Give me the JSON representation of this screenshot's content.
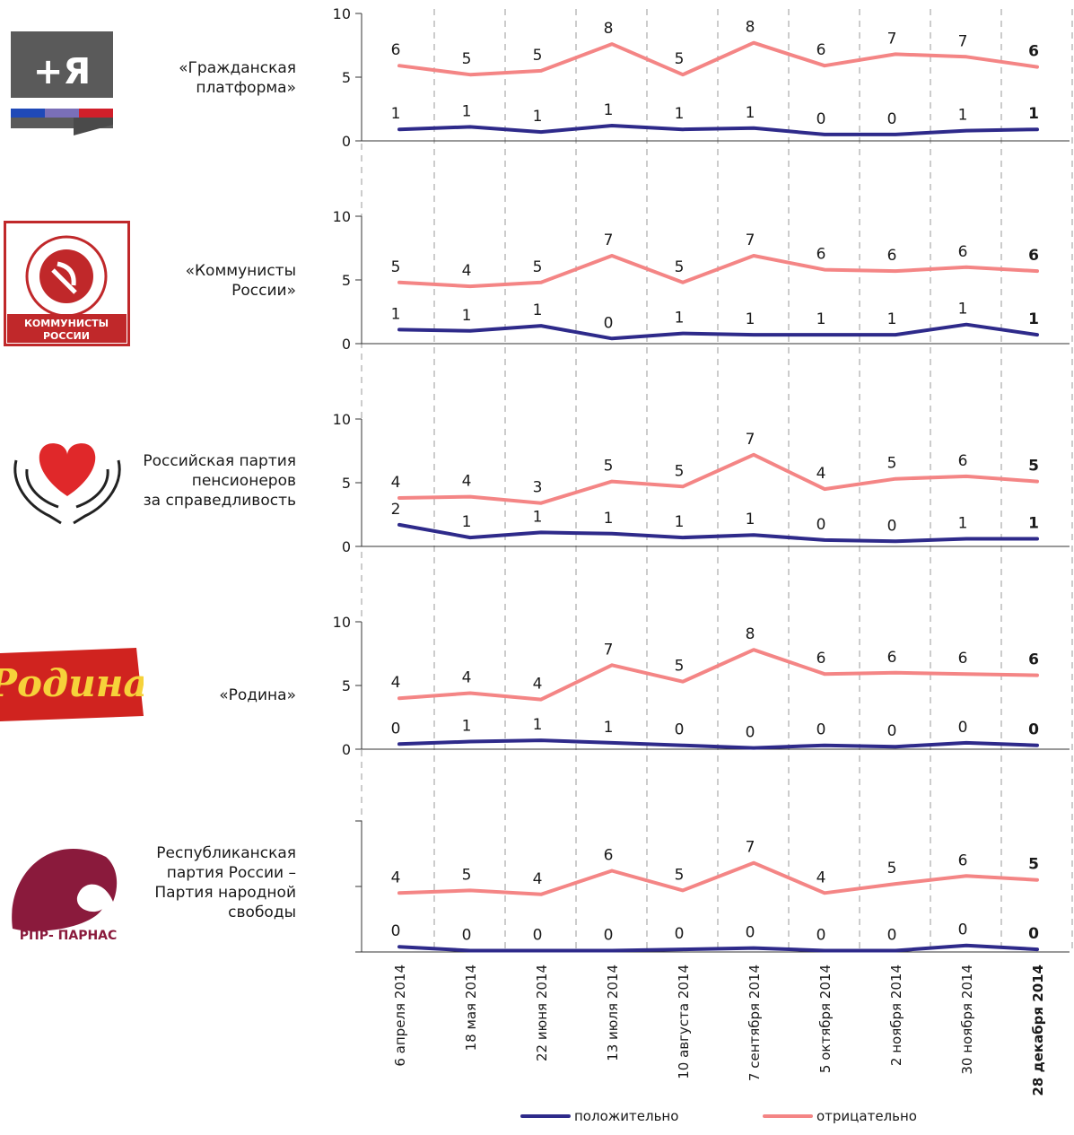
{
  "dates": [
    "6 апреля 2014",
    "18 мая 2014",
    "22 июня 2014",
    "13 июля 2014",
    "10 августа 2014",
    "7 сентября 2014",
    "5 октября 2014",
    "2 ноября 2014",
    "30 ноября 2014",
    "28 декабря 2014"
  ],
  "colors": {
    "positive": "#2e2a8a",
    "negative": "#f48585",
    "axis": "#333333",
    "grid": "#9a9a9a"
  },
  "legend": {
    "positive_label": "положительно",
    "negative_label": "отрицательно"
  },
  "parties": [
    {
      "name": "«Гражданская\nплатформа»",
      "logo_text": "+Я",
      "logo_icon": "grazhdanskaya-platforma-logo"
    },
    {
      "name": "«Коммунисты\nРоссии»",
      "logo_text": "КОММУНИСТЫ РОССИИ",
      "logo_icon": "kommunisty-rossii-logo"
    },
    {
      "name": "Российская партия\nпенсионеров\nза справедливость",
      "logo_text": "",
      "logo_icon": "heart-in-hands-logo"
    },
    {
      "name": "«Родина»",
      "logo_text": "Родина",
      "logo_icon": "rodina-logo"
    },
    {
      "name": "Республиканская\nпартия России –\nПартия народной\nсвободы",
      "logo_text": "РПР- ПАРНАС",
      "logo_icon": "rpr-parnas-logo"
    }
  ],
  "chart_data": [
    {
      "type": "line",
      "party": "«Гражданская платформа»",
      "ylim": [
        0,
        10
      ],
      "yticks": [
        0,
        5,
        10
      ],
      "x": [
        "6 апреля 2014",
        "18 мая 2014",
        "22 июня 2014",
        "13 июля 2014",
        "10 августа 2014",
        "7 сентября 2014",
        "5 октября 2014",
        "2 ноября 2014",
        "30 ноября 2014",
        "28 декабря 2014"
      ],
      "series": [
        {
          "name": "положительно",
          "values": [
            0.9,
            1.1,
            0.7,
            1.2,
            0.9,
            1.0,
            0.5,
            0.5,
            0.8,
            0.9
          ],
          "labels": [
            "1",
            "1",
            "1",
            "1",
            "1",
            "1",
            "0",
            "0",
            "1",
            "1"
          ]
        },
        {
          "name": "отрицательно",
          "values": [
            5.9,
            5.2,
            5.5,
            7.6,
            5.2,
            7.7,
            5.9,
            6.8,
            6.6,
            5.8
          ],
          "labels": [
            "6",
            "5",
            "5",
            "8",
            "5",
            "8",
            "6",
            "7",
            "7",
            "6"
          ]
        }
      ]
    },
    {
      "type": "line",
      "party": "«Коммунисты России»",
      "ylim": [
        0,
        10
      ],
      "yticks": [
        0,
        5,
        10
      ],
      "x": [
        "6 апреля 2014",
        "18 мая 2014",
        "22 июня 2014",
        "13 июля 2014",
        "10 августа 2014",
        "7 сентября 2014",
        "5 октября 2014",
        "2 ноября 2014",
        "30 ноября 2014",
        "28 декабря 2014"
      ],
      "series": [
        {
          "name": "положительно",
          "values": [
            1.1,
            1.0,
            1.4,
            0.4,
            0.8,
            0.7,
            0.7,
            0.7,
            1.5,
            0.7
          ],
          "labels": [
            "1",
            "1",
            "1",
            "0",
            "1",
            "1",
            "1",
            "1",
            "1",
            "1"
          ]
        },
        {
          "name": "отрицательно",
          "values": [
            4.8,
            4.5,
            4.8,
            6.9,
            4.8,
            6.9,
            5.8,
            5.7,
            6.0,
            5.7
          ],
          "labels": [
            "5",
            "4",
            "5",
            "7",
            "5",
            "7",
            "6",
            "6",
            "6",
            "6"
          ]
        }
      ]
    },
    {
      "type": "line",
      "party": "Российская партия пенсионеров за справедливость",
      "ylim": [
        0,
        10
      ],
      "yticks": [
        0,
        5,
        10
      ],
      "x": [
        "6 апреля 2014",
        "18 мая 2014",
        "22 июня 2014",
        "13 июля 2014",
        "10 августа 2014",
        "7 сентября 2014",
        "5 октября 2014",
        "2 ноября 2014",
        "30 ноября 2014",
        "28 декабря 2014"
      ],
      "series": [
        {
          "name": "положительно",
          "values": [
            1.7,
            0.7,
            1.1,
            1.0,
            0.7,
            0.9,
            0.5,
            0.4,
            0.6,
            0.6
          ],
          "labels": [
            "2",
            "1",
            "1",
            "1",
            "1",
            "1",
            "0",
            "0",
            "1",
            "1"
          ]
        },
        {
          "name": "отрицательно",
          "values": [
            3.8,
            3.9,
            3.4,
            5.1,
            4.7,
            7.2,
            4.5,
            5.3,
            5.5,
            5.1
          ],
          "labels": [
            "4",
            "4",
            "3",
            "5",
            "5",
            "7",
            "4",
            "5",
            "6",
            "5"
          ]
        }
      ]
    },
    {
      "type": "line",
      "party": "«Родина»",
      "ylim": [
        0,
        10
      ],
      "yticks": [
        0,
        5,
        10
      ],
      "x": [
        "6 апреля 2014",
        "18 мая 2014",
        "22 июня 2014",
        "13 июля 2014",
        "10 августа 2014",
        "7 сентября 2014",
        "5 октября 2014",
        "2 ноября 2014",
        "30 ноября 2014",
        "28 декабря 2014"
      ],
      "series": [
        {
          "name": "положительно",
          "values": [
            0.4,
            0.6,
            0.7,
            0.5,
            0.3,
            0.1,
            0.3,
            0.2,
            0.5,
            0.3
          ],
          "labels": [
            "0",
            "1",
            "1",
            "1",
            "0",
            "0",
            "0",
            "0",
            "0",
            "0"
          ]
        },
        {
          "name": "отрицательно",
          "values": [
            4.0,
            4.4,
            3.9,
            6.6,
            5.3,
            7.8,
            5.9,
            6.0,
            5.9,
            5.8
          ],
          "labels": [
            "4",
            "4",
            "4",
            "7",
            "5",
            "8",
            "6",
            "6",
            "6",
            "6"
          ]
        }
      ]
    },
    {
      "type": "line",
      "party": "Республиканская партия России – Партия народной свободы",
      "ylim": [
        0,
        10
      ],
      "yticks": [],
      "x": [
        "6 апреля 2014",
        "18 мая 2014",
        "22 июня 2014",
        "13 июля 2014",
        "10 августа 2014",
        "7 сентября 2014",
        "5 октября 2014",
        "2 ноября 2014",
        "30 ноября 2014",
        "28 декабря 2014"
      ],
      "series": [
        {
          "name": "положительно",
          "values": [
            0.4,
            0.1,
            0.1,
            0.1,
            0.2,
            0.3,
            0.1,
            0.1,
            0.5,
            0.2
          ],
          "labels": [
            "0",
            "0",
            "0",
            "0",
            "0",
            "0",
            "0",
            "0",
            "0",
            "0"
          ]
        },
        {
          "name": "отрицательно",
          "values": [
            4.5,
            4.7,
            4.4,
            6.2,
            4.7,
            6.8,
            4.5,
            5.2,
            5.8,
            5.5
          ],
          "labels": [
            "4",
            "5",
            "4",
            "6",
            "5",
            "7",
            "4",
            "5",
            "6",
            "5"
          ]
        }
      ]
    }
  ]
}
